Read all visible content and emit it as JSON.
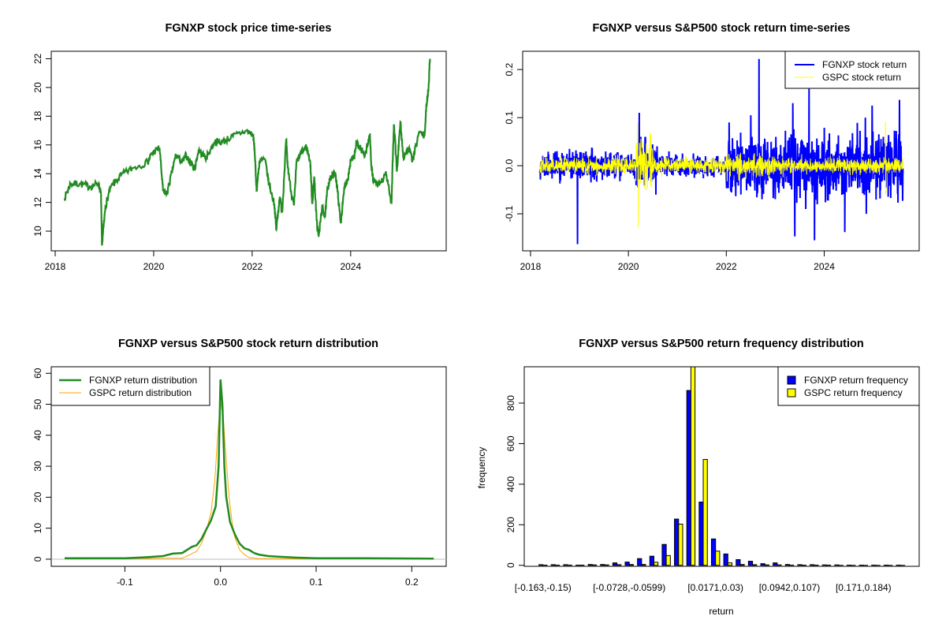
{
  "chart_data": [
    {
      "type": "line",
      "title": "FGNXP stock price time-series",
      "xlabel": "",
      "ylabel": "",
      "xlim": [
        2017.92,
        2025.94
      ],
      "ylim": [
        8.63,
        22.52
      ],
      "x_ticks": [
        2018,
        2020,
        2022,
        2024
      ],
      "x_tick_labels": [
        "2018",
        "2020",
        "2022",
        "2024"
      ],
      "y_ticks": [
        10,
        12,
        14,
        16,
        18,
        20,
        22
      ],
      "y_tick_labels": [
        "10",
        "12",
        "14",
        "16",
        "18",
        "20",
        "22"
      ],
      "series": [
        {
          "name": "FGNXP price",
          "color": "#228B22",
          "x": [
            2018.19,
            2018.31,
            2018.5,
            2018.7,
            2018.88,
            2018.93,
            2018.95,
            2019.02,
            2019.12,
            2019.34,
            2019.58,
            2019.88,
            2019.96,
            2020.12,
            2020.19,
            2020.27,
            2020.37,
            2020.45,
            2020.58,
            2020.66,
            2020.83,
            2020.91,
            2021.07,
            2021.23,
            2021.39,
            2021.61,
            2021.88,
            2022.02,
            2022.05,
            2022.09,
            2022.15,
            2022.26,
            2022.34,
            2022.45,
            2022.49,
            2022.56,
            2022.61,
            2022.69,
            2022.72,
            2022.8,
            2022.85,
            2022.9,
            2022.99,
            2023.1,
            2023.18,
            2023.22,
            2023.26,
            2023.31,
            2023.35,
            2023.42,
            2023.48,
            2023.53,
            2023.58,
            2023.69,
            2023.75,
            2023.8,
            2023.88,
            2023.94,
            2024.0,
            2024.07,
            2024.12,
            2024.23,
            2024.29,
            2024.39,
            2024.42,
            2024.46,
            2024.56,
            2024.64,
            2024.72,
            2024.83,
            2024.85,
            2024.88,
            2024.94,
            2025.01,
            2025.07,
            2025.18,
            2025.26,
            2025.39,
            2025.5,
            2025.54,
            2025.58,
            2025.61
          ],
          "y": [
            12.3,
            13.3,
            13.3,
            13.1,
            13.3,
            12.6,
            9.0,
            11.7,
            13.0,
            13.9,
            14.4,
            14.8,
            15.4,
            15.8,
            12.8,
            12.6,
            14.1,
            15.3,
            14.8,
            15.3,
            14.3,
            15.6,
            15.1,
            16.2,
            16.2,
            16.6,
            17.0,
            16.7,
            15.6,
            12.8,
            14.9,
            15.0,
            13.3,
            11.9,
            10.1,
            12.4,
            11.3,
            16.4,
            14.6,
            12.5,
            11.8,
            14.8,
            15.4,
            15.9,
            14.8,
            11.9,
            13.8,
            10.7,
            9.6,
            11.7,
            11.0,
            13.0,
            13.6,
            14.1,
            12.2,
            10.6,
            13.2,
            13.6,
            14.9,
            15.1,
            16.2,
            15.6,
            15.3,
            16.7,
            14.6,
            13.5,
            13.2,
            13.5,
            14.0,
            11.9,
            14.6,
            17.4,
            14.2,
            17.6,
            15.1,
            15.8,
            14.9,
            16.9,
            16.6,
            18.8,
            19.9,
            22.0
          ]
        }
      ]
    },
    {
      "type": "line",
      "title": "FGNXP versus S&P500 stock return time-series",
      "xlabel": "",
      "ylabel": "",
      "xlim": [
        2017.84,
        2025.94
      ],
      "ylim": [
        -0.177,
        0.238
      ],
      "x_ticks": [
        2018,
        2020,
        2022,
        2024
      ],
      "x_tick_labels": [
        "2018",
        "2020",
        "2022",
        "2024"
      ],
      "y_ticks": [
        -0.1,
        0.0,
        0.1,
        0.2
      ],
      "y_tick_labels": [
        "-0.1",
        "0.0",
        "0.1",
        "0.2"
      ],
      "legend": {
        "position": "top-right",
        "entries": [
          "FGNXP stock return",
          "GSPC stock return"
        ]
      },
      "date_range": [
        2018.19,
        2025.61
      ],
      "series": [
        {
          "name": "FGNXP stock return",
          "color": "#0000FF",
          "volatility_profile": [
            [
              2018.19,
              0.013
            ],
            [
              2020.15,
              0.02
            ],
            [
              2020.6,
              0.01
            ],
            [
              2022.0,
              0.03
            ],
            [
              2025.61,
              0.03
            ]
          ],
          "extremes": [
            [
              2018.96,
              -0.163
            ],
            [
              2020.22,
              0.11
            ],
            [
              2022.5,
              0.105
            ],
            [
              2022.67,
              0.222
            ],
            [
              2023.36,
              0.13
            ],
            [
              2023.4,
              -0.147
            ],
            [
              2023.69,
              0.16
            ],
            [
              2023.8,
              -0.155
            ],
            [
              2024.42,
              -0.138
            ],
            [
              2024.84,
              0.1
            ],
            [
              2024.86,
              -0.1
            ],
            [
              2024.98,
              0.125
            ],
            [
              2025.54,
              0.137
            ]
          ]
        },
        {
          "name": "GSPC stock return",
          "color": "#FFFF00",
          "volatility_profile": [
            [
              2018.19,
              0.008
            ],
            [
              2020.15,
              0.03
            ],
            [
              2020.5,
              0.008
            ],
            [
              2022.0,
              0.012
            ],
            [
              2023.0,
              0.008
            ],
            [
              2025.61,
              0.008
            ]
          ],
          "extremes": [
            [
              2020.2,
              -0.127
            ],
            [
              2020.19,
              0.09
            ],
            [
              2025.25,
              0.092
            ],
            [
              2025.26,
              -0.06
            ]
          ]
        }
      ]
    },
    {
      "type": "line",
      "title": "FGNXP versus S&P500 stock return distribution",
      "xlabel": "",
      "ylabel": "",
      "xlim": [
        -0.177,
        0.236
      ],
      "ylim": [
        -2.3,
        62.1
      ],
      "x_ticks": [
        -0.1,
        0.0,
        0.1,
        0.2
      ],
      "x_tick_labels": [
        "-0.1",
        "0.0",
        "0.1",
        "0.2"
      ],
      "y_ticks": [
        0,
        10,
        20,
        30,
        40,
        50,
        60
      ],
      "y_tick_labels": [
        "0",
        "10",
        "20",
        "30",
        "40",
        "50",
        "60"
      ],
      "legend": {
        "position": "top-left",
        "entries": [
          "FGNXP return distribution",
          "GSPC return distribution"
        ]
      },
      "baseline_color": "#BEBEBE",
      "series": [
        {
          "name": "FGNXP return distribution",
          "color": "#228B22",
          "x": [
            -0.163,
            -0.1,
            -0.08,
            -0.06,
            -0.05,
            -0.04,
            -0.03,
            -0.025,
            -0.02,
            -0.015,
            -0.01,
            -0.005,
            -0.002,
            0,
            0.002,
            0.004,
            0.006,
            0.01,
            0.015,
            0.02,
            0.025,
            0.03,
            0.035,
            0.04,
            0.05,
            0.06,
            0.08,
            0.1,
            0.15,
            0.223
          ],
          "y": [
            0.3,
            0.3,
            0.6,
            1.0,
            1.8,
            2.0,
            4.0,
            4.5,
            6.5,
            9.5,
            12.5,
            17,
            30,
            58,
            50,
            30,
            20,
            12,
            8,
            5,
            3.5,
            3,
            2,
            1.5,
            1,
            0.8,
            0.5,
            0.3,
            0.3,
            0.2
          ]
        },
        {
          "name": "GSPC return distribution",
          "color": "#FFA500",
          "x": [
            -0.163,
            -0.1,
            -0.05,
            -0.04,
            -0.035,
            -0.03,
            -0.025,
            -0.02,
            -0.015,
            -0.01,
            -0.006,
            -0.003,
            0,
            0.003,
            0.006,
            0.009,
            0.012,
            0.015,
            0.02,
            0.025,
            0.03,
            0.04,
            0.06,
            0.09
          ],
          "y": [
            0,
            0.2,
            0.3,
            0.3,
            1,
            1.8,
            2.5,
            5,
            9,
            15,
            25,
            40,
            51,
            45,
            32,
            20,
            12,
            7,
            3,
            1.5,
            0.5,
            0.2,
            0.2,
            0.1
          ]
        }
      ]
    },
    {
      "type": "bar",
      "title": "FGNXP versus S&P500 return frequency distribution",
      "xlabel": "return",
      "ylabel": "frequency",
      "ylim": [
        0,
        979
      ],
      "bin_count": 30,
      "x_tick_bins": [
        0,
        7,
        14,
        20,
        26
      ],
      "x_tick_labels": [
        "[-0.163,-0.15)",
        "[-0.0728,-0.0599)",
        "[0.0171,0.03)",
        "[0.0942,0.107)",
        "[0.171,0.184)"
      ],
      "y_ticks": [
        0,
        200,
        400,
        600,
        800
      ],
      "y_tick_labels": [
        "0",
        "200",
        "400",
        "600",
        "800"
      ],
      "legend": {
        "position": "top-right",
        "entries": [
          "FGNXP return frequency",
          "GSPC return frequency"
        ]
      },
      "series": [
        {
          "name": "FGNXP return frequency",
          "color": "#0000FF",
          "values": [
            3,
            3,
            3,
            1,
            4,
            4,
            12,
            16,
            33,
            45,
            103,
            228,
            862,
            312,
            130,
            56,
            28,
            20,
            8,
            12,
            4,
            3,
            3,
            2,
            2,
            1,
            1,
            1,
            1,
            1
          ]
        },
        {
          "name": "GSPC return frequency",
          "color": "#FFFF00",
          "values": [
            1,
            1,
            1,
            1,
            2,
            2,
            3,
            4,
            4,
            15,
            48,
            203,
            979,
            522,
            70,
            12,
            4,
            3,
            2,
            2,
            1,
            1,
            1,
            1,
            0,
            0,
            0,
            0,
            0,
            0
          ]
        }
      ]
    }
  ]
}
